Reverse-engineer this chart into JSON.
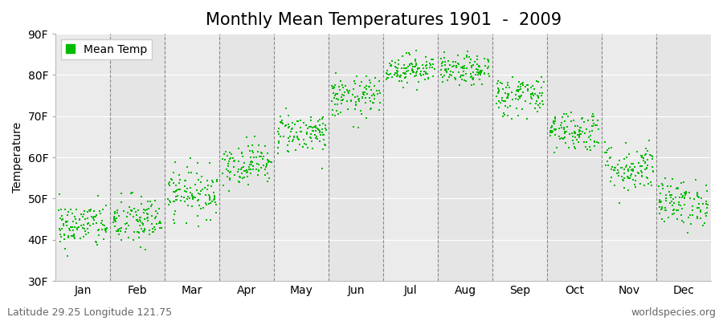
{
  "title": "Monthly Mean Temperatures 1901  -  2009",
  "ylabel": "Temperature",
  "ylim": [
    30,
    90
  ],
  "ytick_labels": [
    "30F",
    "40F",
    "50F",
    "60F",
    "70F",
    "80F",
    "90F"
  ],
  "ytick_values": [
    30,
    40,
    50,
    60,
    70,
    80,
    90
  ],
  "months": [
    "Jan",
    "Feb",
    "Mar",
    "Apr",
    "May",
    "Jun",
    "Jul",
    "Aug",
    "Sep",
    "Oct",
    "Nov",
    "Dec"
  ],
  "mean_temps_F": [
    43.5,
    44.5,
    51.5,
    58.5,
    66.0,
    74.5,
    81.5,
    81.0,
    75.0,
    66.5,
    57.5,
    49.0
  ],
  "std_temps_F": [
    2.8,
    3.2,
    3.0,
    2.5,
    2.5,
    2.5,
    1.8,
    1.8,
    2.5,
    2.5,
    3.0,
    2.8
  ],
  "n_years": 109,
  "dot_color": "#00BB00",
  "dot_size": 3,
  "legend_label": "Mean Temp",
  "bg_color": "#EBEBEB",
  "footer_left": "Latitude 29.25 Longitude 121.75",
  "footer_right": "worldspecies.org",
  "title_fontsize": 15,
  "axis_fontsize": 10,
  "tick_fontsize": 10,
  "footer_fontsize": 9
}
